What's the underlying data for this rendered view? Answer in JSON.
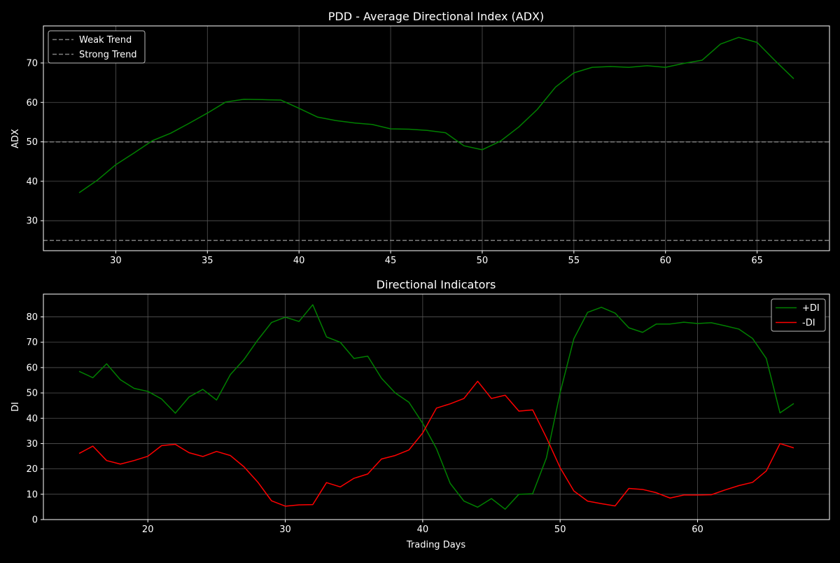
{
  "colors": {
    "background": "#000000",
    "axes_face": "#000000",
    "spine": "#ffffff",
    "grid": "#555555",
    "text": "#ffffff",
    "adx_line": "#008000",
    "plus_di": "#008000",
    "minus_di": "#ff0000",
    "threshold": "#808080"
  },
  "chart_data": [
    {
      "type": "line",
      "title": "PDD - Average Directional Index (ADX)",
      "xlabel": "",
      "ylabel": "ADX",
      "xlim": [
        26.05,
        68.95
      ],
      "ylim": [
        22.4,
        79.4
      ],
      "xticks": [
        30,
        35,
        40,
        45,
        50,
        55,
        60,
        65
      ],
      "yticks": [
        30,
        40,
        50,
        60,
        70
      ],
      "grid": true,
      "legend_position": "upper-left",
      "series": [
        {
          "name": "",
          "color": "#008000",
          "x": [
            28,
            29,
            30,
            31,
            32,
            33,
            34,
            35,
            36,
            37,
            38,
            39,
            40,
            41,
            42,
            43,
            44,
            45,
            46,
            47,
            48,
            49,
            50,
            51,
            52,
            53,
            54,
            55,
            56,
            57,
            58,
            59,
            60,
            61,
            62,
            63,
            64,
            65,
            66,
            67
          ],
          "y": [
            37.1,
            40.3,
            44.2,
            47.2,
            50.3,
            52.2,
            54.7,
            57.3,
            60.1,
            60.8,
            60.7,
            60.6,
            58.5,
            56.3,
            55.4,
            54.8,
            54.4,
            53.3,
            53.2,
            52.9,
            52.3,
            49.0,
            48.0,
            50.2,
            53.8,
            58.2,
            63.9,
            67.5,
            68.9,
            69.1,
            68.9,
            69.3,
            68.9,
            69.9,
            70.7,
            74.8,
            76.5,
            75.2,
            70.5,
            66.0
          ]
        }
      ],
      "hlines": [
        {
          "name": "Weak Trend",
          "y": 25,
          "color": "#808080",
          "style": "dashed"
        },
        {
          "name": "Strong Trend",
          "y": 50,
          "color": "#808080",
          "style": "dashed"
        }
      ]
    },
    {
      "type": "line",
      "title": "Directional Indicators",
      "xlabel": "Trading Days",
      "ylabel": "DI",
      "xlim": [
        12.4,
        69.6
      ],
      "ylim": [
        0,
        89
      ],
      "xticks": [
        20,
        30,
        40,
        50,
        60
      ],
      "yticks": [
        0,
        10,
        20,
        30,
        40,
        50,
        60,
        70,
        80
      ],
      "grid": true,
      "legend_position": "upper-right",
      "series": [
        {
          "name": "+DI",
          "color": "#008000",
          "x": [
            15,
            16,
            17,
            18,
            19,
            20,
            21,
            22,
            23,
            24,
            25,
            26,
            27,
            28,
            29,
            30,
            31,
            32,
            33,
            34,
            35,
            36,
            37,
            38,
            39,
            40,
            41,
            42,
            43,
            44,
            45,
            46,
            47,
            48,
            49,
            50,
            51,
            52,
            53,
            54,
            55,
            56,
            57,
            58,
            59,
            60,
            61,
            62,
            63,
            64,
            65,
            66,
            67
          ],
          "y": [
            58.5,
            56.0,
            61.5,
            55.2,
            51.8,
            50.6,
            47.6,
            42.0,
            48.4,
            51.4,
            47.2,
            57.2,
            63.2,
            70.9,
            77.8,
            79.9,
            78.2,
            84.8,
            72.1,
            70.0,
            63.6,
            64.5,
            55.8,
            50.0,
            46.3,
            38.0,
            28.0,
            14.3,
            7.3,
            4.9,
            8.3,
            4.1,
            10.0,
            10.2,
            24.3,
            50.1,
            71.4,
            81.8,
            83.8,
            81.5,
            75.7,
            73.9,
            77.2,
            77.2,
            77.9,
            77.4,
            77.7,
            76.5,
            75.2,
            71.5,
            63.6,
            42.1,
            45.8
          ]
        },
        {
          "name": "-DI",
          "color": "#ff0000",
          "x": [
            15,
            16,
            17,
            18,
            19,
            20,
            21,
            22,
            23,
            24,
            25,
            26,
            27,
            28,
            29,
            30,
            31,
            32,
            33,
            34,
            35,
            36,
            37,
            38,
            39,
            40,
            41,
            42,
            43,
            44,
            45,
            46,
            47,
            48,
            49,
            50,
            51,
            52,
            53,
            54,
            55,
            56,
            57,
            58,
            59,
            60,
            61,
            62,
            63,
            64,
            65,
            66,
            67
          ],
          "y": [
            26.1,
            29.0,
            23.3,
            21.9,
            23.3,
            25.0,
            29.2,
            29.7,
            26.4,
            24.9,
            26.9,
            25.3,
            20.8,
            14.8,
            7.4,
            5.3,
            5.8,
            5.9,
            14.6,
            12.9,
            16.3,
            18.0,
            23.9,
            25.3,
            27.5,
            34.2,
            44.0,
            45.7,
            47.8,
            54.6,
            47.8,
            49.1,
            42.8,
            43.3,
            32.4,
            20.5,
            11.3,
            7.3,
            6.3,
            5.4,
            12.3,
            11.9,
            10.6,
            8.5,
            9.7,
            9.7,
            9.8,
            11.7,
            13.4,
            14.7,
            19.2,
            30.0,
            28.3
          ]
        }
      ]
    }
  ]
}
